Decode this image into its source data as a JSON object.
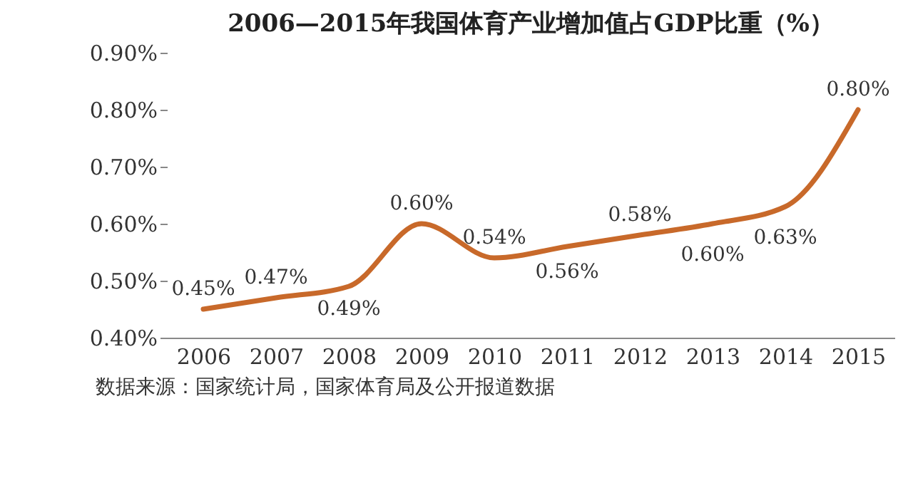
{
  "chart_data": {
    "type": "line",
    "title": "2006—2015年我国体育产业增加值占GDP比重（%）",
    "categories": [
      "2006",
      "2007",
      "2008",
      "2009",
      "2010",
      "2011",
      "2012",
      "2013",
      "2014",
      "2015"
    ],
    "series": [
      {
        "color": "#c8692a",
        "values": [
          0.45,
          0.47,
          0.49,
          0.6,
          0.54,
          0.56,
          0.58,
          0.6,
          0.63,
          0.8
        ]
      }
    ],
    "value_labels": [
      "0.45%",
      "0.47%",
      "0.49%",
      "0.60%",
      "0.54%",
      "0.56%",
      "0.58%",
      "0.60%",
      "0.63%",
      "0.80%"
    ],
    "ylim": [
      0.4,
      0.9
    ],
    "yticks": [
      {
        "value": 0.4,
        "label": "0.40%"
      },
      {
        "value": 0.5,
        "label": "0.50%"
      },
      {
        "value": 0.6,
        "label": "0.60%"
      },
      {
        "value": 0.7,
        "label": "0.70%"
      },
      {
        "value": 0.8,
        "label": "0.80%"
      },
      {
        "value": 0.9,
        "label": "0.90%"
      }
    ],
    "grid": false,
    "marker": "none",
    "line_style": "solid",
    "annotations": [
      "数据来源：国家统计局，国家体育局及公开报道数据"
    ]
  }
}
